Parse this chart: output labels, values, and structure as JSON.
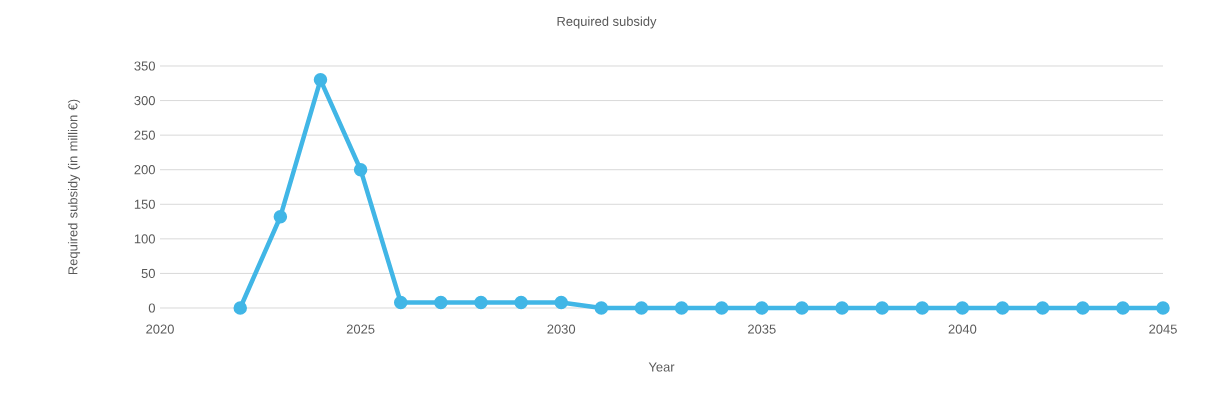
{
  "chart_data": {
    "type": "line",
    "title": "Required subsidy",
    "xlabel": "Year",
    "ylabel": "Required subsidy (in million €)",
    "x": [
      2022,
      2023,
      2024,
      2025,
      2026,
      2027,
      2028,
      2029,
      2030,
      2031,
      2032,
      2033,
      2034,
      2035,
      2036,
      2037,
      2038,
      2039,
      2040,
      2041,
      2042,
      2043,
      2044,
      2045
    ],
    "series": [
      {
        "color": "#41b6e6",
        "values": [
          0,
          132,
          330,
          200,
          8,
          8,
          8,
          8,
          8,
          0,
          0,
          0,
          0,
          0,
          0,
          0,
          0,
          0,
          0,
          0,
          0,
          0,
          0,
          0
        ]
      }
    ],
    "xlim": [
      2020,
      2045
    ],
    "xticks": [
      2020,
      2025,
      2030,
      2035,
      2040,
      2045
    ],
    "ylim": [
      0,
      350
    ],
    "yticks": [
      0,
      50,
      100,
      150,
      200,
      250,
      300,
      350
    ],
    "grid": "y",
    "marker": "circle",
    "line_style": "solid"
  }
}
